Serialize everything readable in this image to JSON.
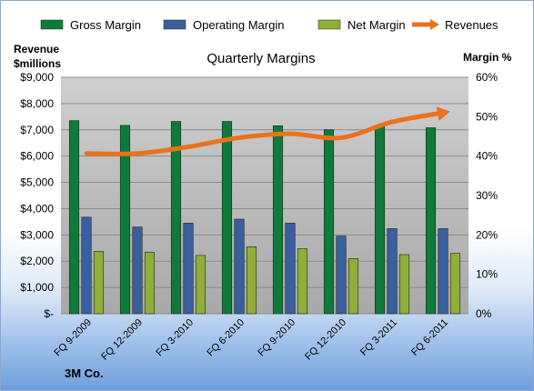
{
  "chart_data": {
    "type": "bar",
    "title": "Quarterly Margins",
    "categories": [
      "FQ 9-2009",
      "FQ 12-2009",
      "FQ 3-2010",
      "FQ 6-2010",
      "FQ 9-2010",
      "FQ 12-2010",
      "FQ 3-2011",
      "FQ 6-2011"
    ],
    "series": [
      {
        "name": "Gross Margin",
        "axis": "right",
        "color": "#0f7a3a",
        "values": [
          49.0,
          47.8,
          48.8,
          48.8,
          47.7,
          46.7,
          47.7,
          47.2
        ]
      },
      {
        "name": "Operating Margin",
        "axis": "right",
        "color": "#3a5f9f",
        "values": [
          24.5,
          22.0,
          23.0,
          24.0,
          23.0,
          19.7,
          21.6,
          21.6
        ]
      },
      {
        "name": "Net Margin",
        "axis": "right",
        "color": "#8fae3a",
        "values": [
          15.8,
          15.6,
          14.8,
          17.0,
          16.5,
          14.0,
          15.0,
          15.3
        ]
      },
      {
        "name": "Revenues",
        "axis": "left",
        "type": "line",
        "color": "#e8731c",
        "values": [
          6100,
          6100,
          6350,
          6700,
          6850,
          6700,
          7300,
          7650
        ]
      }
    ],
    "left_axis": {
      "label_line1": "Revenue",
      "label_line2": "$millions",
      "ylim": [
        0,
        9000
      ],
      "ticks": [
        "$-",
        "$1,000",
        "$2,000",
        "$3,000",
        "$4,000",
        "$5,000",
        "$6,000",
        "$7,000",
        "$8,000",
        "$9,000"
      ]
    },
    "right_axis": {
      "label": "Margin %",
      "ylim": [
        0,
        60
      ],
      "ticks": [
        "0%",
        "10%",
        "20%",
        "30%",
        "40%",
        "50%",
        "60%"
      ]
    },
    "legend_position": "top",
    "grid": true
  },
  "footer": "3M Co."
}
